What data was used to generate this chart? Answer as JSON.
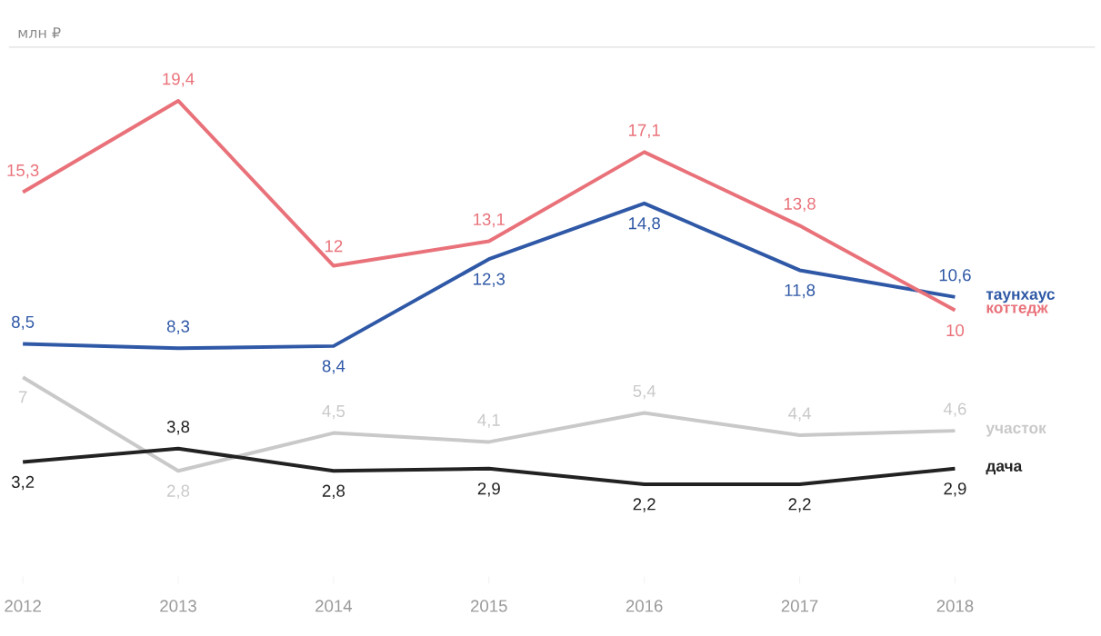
{
  "chart_data": {
    "type": "line",
    "ylabel": "млн ₽",
    "x": [
      2012,
      2013,
      2014,
      2015,
      2016,
      2017,
      2018
    ],
    "xlim": [
      2012,
      2018
    ],
    "xticks": [
      2012,
      2013,
      2014,
      2015,
      2016,
      2017,
      2018
    ],
    "legend": "right",
    "marker": "none",
    "line_style": "solid",
    "series": [
      {
        "name": "таунхаус",
        "color": "#2f58a6",
        "values": [
          8.5,
          8.3,
          8.4,
          12.3,
          14.8,
          11.8,
          10.6
        ],
        "value_labels": [
          "8,5",
          "8,3",
          "8,4",
          "12,3",
          "14,8",
          "11,8",
          "10,6"
        ]
      },
      {
        "name": "коттедж",
        "color": "#e9727a",
        "values": [
          15.3,
          19.4,
          12,
          13.1,
          17.1,
          13.8,
          10
        ],
        "value_labels": [
          "15,3",
          "19,4",
          "12",
          "13,1",
          "17,1",
          "13,8",
          "10"
        ]
      },
      {
        "name": "участок",
        "color": "#c9c9c9",
        "values": [
          7,
          2.8,
          4.5,
          4.1,
          5.4,
          4.4,
          4.6
        ],
        "value_labels": [
          "7",
          "2,8",
          "4,5",
          "4,1",
          "5,4",
          "4,4",
          "4,6"
        ]
      },
      {
        "name": "дача",
        "color": "#222222",
        "values": [
          3.2,
          3.8,
          2.8,
          2.9,
          2.2,
          2.2,
          2.9
        ],
        "value_labels": [
          "3,2",
          "3,8",
          "2,8",
          "2,9",
          "2,2",
          "2,2",
          "2,9"
        ]
      }
    ]
  }
}
